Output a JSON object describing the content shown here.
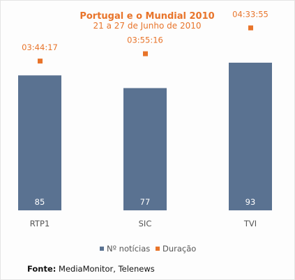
{
  "chart_data": {
    "type": "bar",
    "title": "Portugal e o Mundial 2010",
    "subtitle": "21 a 27 de Junho de 2010",
    "categories": [
      "RTP1",
      "SIC",
      "TVI"
    ],
    "series": [
      {
        "name": "Nº notícias",
        "values": [
          85,
          77,
          93
        ],
        "color": "#5a7291",
        "kind": "bar"
      },
      {
        "name": "Duração",
        "values": [
          "03:44:17",
          "03:55:16",
          "04:33:55"
        ],
        "seconds": [
          13457,
          14116,
          16435
        ],
        "color": "#e8742a",
        "kind": "point"
      }
    ],
    "legend_position": "bottom",
    "grid": false
  },
  "source": {
    "label": "Fonte:",
    "text": "MediaMonitor, Telenews"
  }
}
